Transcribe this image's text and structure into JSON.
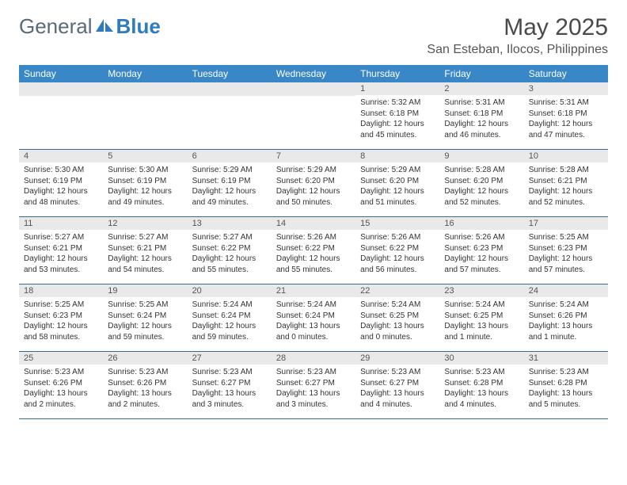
{
  "brand": {
    "part1": "General",
    "part2": "Blue"
  },
  "title": "May 2025",
  "location": "San Esteban, Ilocos, Philippines",
  "dayHeaders": [
    "Sunday",
    "Monday",
    "Tuesday",
    "Wednesday",
    "Thursday",
    "Friday",
    "Saturday"
  ],
  "colors": {
    "headerBar": "#3a87c7",
    "headerText": "#ffffff",
    "dayNumBg": "#e9e9e9",
    "weekBorder": "#3a6a9a",
    "brandGray": "#5a6a7a",
    "brandBlue": "#2e7cbf"
  },
  "weeks": [
    [
      {
        "empty": true
      },
      {
        "empty": true
      },
      {
        "empty": true
      },
      {
        "empty": true
      },
      {
        "n": "1",
        "sunrise": "5:32 AM",
        "sunset": "6:18 PM",
        "daylight": "12 hours and 45 minutes."
      },
      {
        "n": "2",
        "sunrise": "5:31 AM",
        "sunset": "6:18 PM",
        "daylight": "12 hours and 46 minutes."
      },
      {
        "n": "3",
        "sunrise": "5:31 AM",
        "sunset": "6:18 PM",
        "daylight": "12 hours and 47 minutes."
      }
    ],
    [
      {
        "n": "4",
        "sunrise": "5:30 AM",
        "sunset": "6:19 PM",
        "daylight": "12 hours and 48 minutes."
      },
      {
        "n": "5",
        "sunrise": "5:30 AM",
        "sunset": "6:19 PM",
        "daylight": "12 hours and 49 minutes."
      },
      {
        "n": "6",
        "sunrise": "5:29 AM",
        "sunset": "6:19 PM",
        "daylight": "12 hours and 49 minutes."
      },
      {
        "n": "7",
        "sunrise": "5:29 AM",
        "sunset": "6:20 PM",
        "daylight": "12 hours and 50 minutes."
      },
      {
        "n": "8",
        "sunrise": "5:29 AM",
        "sunset": "6:20 PM",
        "daylight": "12 hours and 51 minutes."
      },
      {
        "n": "9",
        "sunrise": "5:28 AM",
        "sunset": "6:20 PM",
        "daylight": "12 hours and 52 minutes."
      },
      {
        "n": "10",
        "sunrise": "5:28 AM",
        "sunset": "6:21 PM",
        "daylight": "12 hours and 52 minutes."
      }
    ],
    [
      {
        "n": "11",
        "sunrise": "5:27 AM",
        "sunset": "6:21 PM",
        "daylight": "12 hours and 53 minutes."
      },
      {
        "n": "12",
        "sunrise": "5:27 AM",
        "sunset": "6:21 PM",
        "daylight": "12 hours and 54 minutes."
      },
      {
        "n": "13",
        "sunrise": "5:27 AM",
        "sunset": "6:22 PM",
        "daylight": "12 hours and 55 minutes."
      },
      {
        "n": "14",
        "sunrise": "5:26 AM",
        "sunset": "6:22 PM",
        "daylight": "12 hours and 55 minutes."
      },
      {
        "n": "15",
        "sunrise": "5:26 AM",
        "sunset": "6:22 PM",
        "daylight": "12 hours and 56 minutes."
      },
      {
        "n": "16",
        "sunrise": "5:26 AM",
        "sunset": "6:23 PM",
        "daylight": "12 hours and 57 minutes."
      },
      {
        "n": "17",
        "sunrise": "5:25 AM",
        "sunset": "6:23 PM",
        "daylight": "12 hours and 57 minutes."
      }
    ],
    [
      {
        "n": "18",
        "sunrise": "5:25 AM",
        "sunset": "6:23 PM",
        "daylight": "12 hours and 58 minutes."
      },
      {
        "n": "19",
        "sunrise": "5:25 AM",
        "sunset": "6:24 PM",
        "daylight": "12 hours and 59 minutes."
      },
      {
        "n": "20",
        "sunrise": "5:24 AM",
        "sunset": "6:24 PM",
        "daylight": "12 hours and 59 minutes."
      },
      {
        "n": "21",
        "sunrise": "5:24 AM",
        "sunset": "6:24 PM",
        "daylight": "13 hours and 0 minutes."
      },
      {
        "n": "22",
        "sunrise": "5:24 AM",
        "sunset": "6:25 PM",
        "daylight": "13 hours and 0 minutes."
      },
      {
        "n": "23",
        "sunrise": "5:24 AM",
        "sunset": "6:25 PM",
        "daylight": "13 hours and 1 minute."
      },
      {
        "n": "24",
        "sunrise": "5:24 AM",
        "sunset": "6:26 PM",
        "daylight": "13 hours and 1 minute."
      }
    ],
    [
      {
        "n": "25",
        "sunrise": "5:23 AM",
        "sunset": "6:26 PM",
        "daylight": "13 hours and 2 minutes."
      },
      {
        "n": "26",
        "sunrise": "5:23 AM",
        "sunset": "6:26 PM",
        "daylight": "13 hours and 2 minutes."
      },
      {
        "n": "27",
        "sunrise": "5:23 AM",
        "sunset": "6:27 PM",
        "daylight": "13 hours and 3 minutes."
      },
      {
        "n": "28",
        "sunrise": "5:23 AM",
        "sunset": "6:27 PM",
        "daylight": "13 hours and 3 minutes."
      },
      {
        "n": "29",
        "sunrise": "5:23 AM",
        "sunset": "6:27 PM",
        "daylight": "13 hours and 4 minutes."
      },
      {
        "n": "30",
        "sunrise": "5:23 AM",
        "sunset": "6:28 PM",
        "daylight": "13 hours and 4 minutes."
      },
      {
        "n": "31",
        "sunrise": "5:23 AM",
        "sunset": "6:28 PM",
        "daylight": "13 hours and 5 minutes."
      }
    ]
  ],
  "labels": {
    "sunrise": "Sunrise: ",
    "sunset": "Sunset: ",
    "daylight": "Daylight: "
  }
}
